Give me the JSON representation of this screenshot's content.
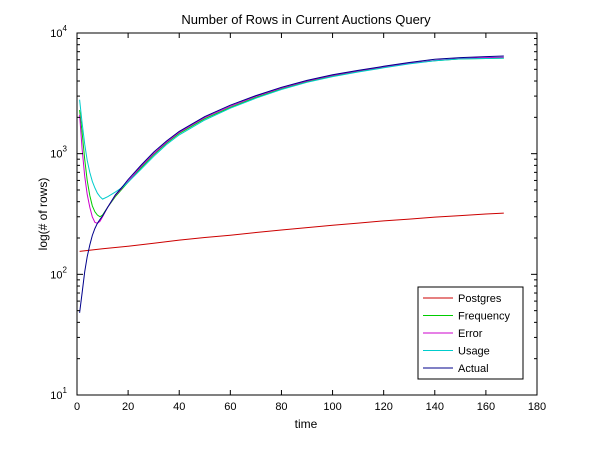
{
  "chart_data": {
    "type": "line",
    "title": "Number of Rows in Current Auctions Query",
    "xlabel": "time",
    "ylabel": "log(# of rows)",
    "xlim": [
      0,
      180
    ],
    "ylim": [
      10,
      10000
    ],
    "yscale": "log",
    "grid": false,
    "legend_position": "bottom-right",
    "x_ticks": [
      0,
      20,
      40,
      60,
      80,
      100,
      120,
      140,
      160,
      180
    ],
    "y_ticks": [
      {
        "value": 10,
        "base": "10",
        "exp": "1"
      },
      {
        "value": 100,
        "base": "10",
        "exp": "2"
      },
      {
        "value": 1000,
        "base": "10",
        "exp": "3"
      },
      {
        "value": 10000,
        "base": "10",
        "exp": "4"
      }
    ],
    "series": [
      {
        "name": "Postgres",
        "color": "#cc0000",
        "points": [
          [
            1,
            155
          ],
          [
            10,
            163
          ],
          [
            20,
            171
          ],
          [
            30,
            181
          ],
          [
            40,
            192
          ],
          [
            50,
            202
          ],
          [
            60,
            211
          ],
          [
            70,
            222
          ],
          [
            80,
            233
          ],
          [
            90,
            244
          ],
          [
            100,
            255
          ],
          [
            110,
            266
          ],
          [
            120,
            277
          ],
          [
            130,
            287
          ],
          [
            140,
            298
          ],
          [
            150,
            307
          ],
          [
            160,
            316
          ],
          [
            167,
            322
          ]
        ]
      },
      {
        "name": "Frequency",
        "color": "#00cc00",
        "points": [
          [
            1,
            2300
          ],
          [
            2,
            1500
          ],
          [
            3,
            900
          ],
          [
            4,
            600
          ],
          [
            5,
            450
          ],
          [
            6,
            370
          ],
          [
            7,
            330
          ],
          [
            8,
            310
          ],
          [
            9,
            300
          ],
          [
            10,
            310
          ],
          [
            12,
            360
          ],
          [
            15,
            440
          ],
          [
            18,
            520
          ],
          [
            20,
            580
          ],
          [
            25,
            760
          ],
          [
            30,
            980
          ],
          [
            35,
            1220
          ],
          [
            40,
            1470
          ],
          [
            50,
            1950
          ],
          [
            60,
            2420
          ],
          [
            70,
            2920
          ],
          [
            80,
            3450
          ],
          [
            90,
            3950
          ],
          [
            100,
            4400
          ],
          [
            110,
            4800
          ],
          [
            120,
            5200
          ],
          [
            130,
            5600
          ],
          [
            140,
            5900
          ],
          [
            150,
            6100
          ],
          [
            160,
            6150
          ],
          [
            167,
            6200
          ]
        ]
      },
      {
        "name": "Error",
        "color": "#cc00cc",
        "points": [
          [
            1,
            2100
          ],
          [
            2,
            1100
          ],
          [
            3,
            650
          ],
          [
            4,
            460
          ],
          [
            5,
            360
          ],
          [
            6,
            300
          ],
          [
            7,
            270
          ],
          [
            8,
            265
          ],
          [
            9,
            275
          ],
          [
            10,
            300
          ],
          [
            12,
            360
          ],
          [
            15,
            450
          ],
          [
            18,
            530
          ],
          [
            20,
            590
          ],
          [
            25,
            780
          ],
          [
            30,
            1000
          ],
          [
            35,
            1240
          ],
          [
            40,
            1500
          ],
          [
            50,
            1990
          ],
          [
            60,
            2470
          ],
          [
            70,
            2980
          ],
          [
            80,
            3500
          ],
          [
            90,
            4000
          ],
          [
            100,
            4450
          ],
          [
            110,
            4850
          ],
          [
            120,
            5250
          ],
          [
            130,
            5620
          ],
          [
            140,
            5920
          ],
          [
            150,
            6150
          ],
          [
            160,
            6250
          ],
          [
            167,
            6300
          ]
        ]
      },
      {
        "name": "Usage",
        "color": "#00cccc",
        "points": [
          [
            1,
            2800
          ],
          [
            2,
            1800
          ],
          [
            3,
            1200
          ],
          [
            4,
            880
          ],
          [
            5,
            700
          ],
          [
            6,
            590
          ],
          [
            7,
            520
          ],
          [
            8,
            470
          ],
          [
            9,
            440
          ],
          [
            10,
            420
          ],
          [
            12,
            440
          ],
          [
            15,
            480
          ],
          [
            18,
            530
          ],
          [
            20,
            580
          ],
          [
            25,
            740
          ],
          [
            30,
            950
          ],
          [
            35,
            1190
          ],
          [
            40,
            1430
          ],
          [
            50,
            1900
          ],
          [
            60,
            2380
          ],
          [
            70,
            2880
          ],
          [
            80,
            3400
          ],
          [
            90,
            3900
          ],
          [
            100,
            4350
          ],
          [
            110,
            4750
          ],
          [
            120,
            5150
          ],
          [
            130,
            5550
          ],
          [
            140,
            5900
          ],
          [
            150,
            6100
          ],
          [
            160,
            6150
          ],
          [
            167,
            6200
          ]
        ]
      },
      {
        "name": "Actual",
        "color": "#00008b",
        "points": [
          [
            1,
            48
          ],
          [
            2,
            70
          ],
          [
            3,
            105
          ],
          [
            4,
            140
          ],
          [
            5,
            175
          ],
          [
            6,
            210
          ],
          [
            7,
            240
          ],
          [
            8,
            265
          ],
          [
            9,
            285
          ],
          [
            10,
            305
          ],
          [
            12,
            360
          ],
          [
            15,
            455
          ],
          [
            18,
            540
          ],
          [
            20,
            610
          ],
          [
            25,
            800
          ],
          [
            30,
            1030
          ],
          [
            35,
            1270
          ],
          [
            40,
            1530
          ],
          [
            50,
            2030
          ],
          [
            60,
            2520
          ],
          [
            70,
            3030
          ],
          [
            80,
            3550
          ],
          [
            90,
            4050
          ],
          [
            100,
            4500
          ],
          [
            110,
            4900
          ],
          [
            120,
            5300
          ],
          [
            130,
            5700
          ],
          [
            140,
            6050
          ],
          [
            150,
            6250
          ],
          [
            160,
            6380
          ],
          [
            167,
            6450
          ]
        ]
      }
    ]
  }
}
